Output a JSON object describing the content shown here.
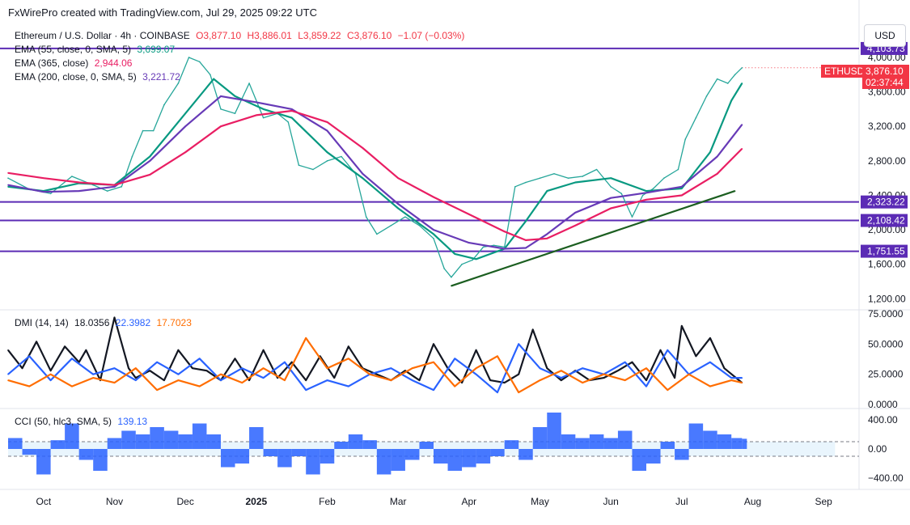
{
  "header": {
    "created_by": "FxWirePro created with TradingView.com, Jul 29, 2025 09:22 UTC"
  },
  "symbol_line": {
    "name": "Ethereum / U.S. Dollar · 4h · COINBASE",
    "open": "O3,877.10",
    "high": "H3,886.01",
    "low": "L3,859.22",
    "close": "C3,876.10",
    "change": "−1.07 (−0.03%)"
  },
  "indicators": {
    "ema55": {
      "label": "EMA (55, close, 0, SMA, 5)",
      "value": "3,699.07",
      "color": "#089981"
    },
    "ema365": {
      "label": "EMA (365, close)",
      "value": "2,944.06",
      "color": "#e91e63"
    },
    "ema200": {
      "label": "EMA (200, close, 0, SMA, 5)",
      "value": "3,221.72",
      "color": "#673ab7"
    },
    "dmi": {
      "label": "DMI (14, 14)",
      "adx": "18.0356",
      "plus": "22.3982",
      "minus": "17.7023",
      "adx_color": "#131722",
      "plus_color": "#2962ff",
      "minus_color": "#ff6d00"
    },
    "cci": {
      "label": "CCI (50, hlc3, SMA, 5)",
      "value": "139.13",
      "color": "#2962ff"
    }
  },
  "currency": "USD",
  "price_tag": {
    "symbol": "ETHUSD",
    "price": "3,876.10",
    "countdown": "02:37:44",
    "color": "#f23645"
  },
  "hlines": [
    {
      "label": "4,103.73",
      "value": 4103.73
    },
    {
      "label": "2,323.22",
      "value": 2323.22
    },
    {
      "label": "2,108.42",
      "value": 2108.42
    },
    {
      "label": "1,751.55",
      "value": 1751.55
    }
  ],
  "hline_color": "#5b2bb5",
  "chart_data": [
    {
      "type": "line",
      "panel": "price",
      "ylim": [
        1100,
        4150
      ],
      "y_ticks": [
        "4,000.00",
        "3,600.00",
        "3,200.00",
        "2,800.00",
        "2,400.00",
        "2,000.00",
        "1,600.00",
        "1,200.00"
      ],
      "y_tick_values": [
        4000,
        3600,
        3200,
        2800,
        2400,
        2000,
        1600,
        1200
      ],
      "x_ticks": [
        "Oct",
        "Nov",
        "Dec",
        "2025",
        "Feb",
        "Mar",
        "Apr",
        "May",
        "Jun",
        "Jul",
        "Aug",
        "Sep"
      ],
      "x_tick_pos": [
        0.5,
        1.5,
        2.5,
        3.5,
        4.5,
        5.5,
        6.5,
        7.5,
        8.5,
        9.5,
        10.5,
        11.5
      ],
      "x_tick_bold": [
        false,
        false,
        false,
        true,
        false,
        false,
        false,
        false,
        false,
        false,
        false,
        false
      ],
      "series": [
        {
          "name": "Price",
          "color": "#26a69a",
          "x": [
            0,
            0.3,
            0.6,
            0.9,
            1.2,
            1.4,
            1.6,
            1.75,
            1.9,
            2.05,
            2.2,
            2.4,
            2.55,
            2.7,
            2.85,
            3.0,
            3.2,
            3.4,
            3.6,
            3.8,
            3.95,
            4.1,
            4.3,
            4.5,
            4.7,
            4.9,
            5.05,
            5.2,
            5.4,
            5.6,
            5.8,
            6.0,
            6.15,
            6.25,
            6.4,
            6.55,
            6.7,
            6.85,
            7.0,
            7.15,
            7.3,
            7.5,
            7.7,
            7.9,
            8.1,
            8.3,
            8.5,
            8.65,
            8.8,
            8.95,
            9.1,
            9.25,
            9.45,
            9.55,
            9.7,
            9.85,
            10.0,
            10.15,
            10.25,
            10.35
          ],
          "values": [
            2600,
            2470,
            2420,
            2620,
            2520,
            2450,
            2500,
            2850,
            3150,
            3150,
            3450,
            3700,
            4000,
            3950,
            3800,
            3400,
            3350,
            3700,
            3300,
            3350,
            3250,
            2750,
            2700,
            2800,
            2850,
            2650,
            2150,
            1950,
            2050,
            2150,
            2050,
            1900,
            1550,
            1450,
            1600,
            1650,
            1800,
            1820,
            1800,
            2500,
            2550,
            2600,
            2650,
            2600,
            2620,
            2700,
            2500,
            2420,
            2150,
            2400,
            2480,
            2600,
            2700,
            3050,
            3300,
            3550,
            3750,
            3700,
            3800,
            3880
          ]
        },
        {
          "name": "EMA 55",
          "color": "#089981",
          "x": [
            0,
            0.5,
            1.0,
            1.5,
            2.0,
            2.5,
            2.9,
            3.2,
            3.6,
            4.0,
            4.5,
            5.0,
            5.5,
            6.0,
            6.3,
            6.6,
            7.0,
            7.3,
            7.6,
            8.0,
            8.5,
            9.0,
            9.5,
            9.9,
            10.2,
            10.35
          ],
          "values": [
            2500,
            2450,
            2540,
            2520,
            2850,
            3350,
            3750,
            3550,
            3400,
            3300,
            2900,
            2600,
            2250,
            1950,
            1720,
            1660,
            1780,
            2100,
            2450,
            2550,
            2600,
            2450,
            2480,
            2900,
            3500,
            3700
          ]
        },
        {
          "name": "EMA 200",
          "color": "#673ab7",
          "x": [
            0,
            0.5,
            1.0,
            1.5,
            2.0,
            2.5,
            3.0,
            3.5,
            4.0,
            4.5,
            5.0,
            5.5,
            6.0,
            6.5,
            7.0,
            7.3,
            7.6,
            8.0,
            8.5,
            9.0,
            9.5,
            10.0,
            10.35
          ],
          "values": [
            2520,
            2440,
            2450,
            2500,
            2800,
            3200,
            3550,
            3480,
            3400,
            3150,
            2650,
            2300,
            2000,
            1850,
            1780,
            1790,
            1950,
            2200,
            2370,
            2430,
            2500,
            2850,
            3220
          ]
        },
        {
          "name": "EMA 365",
          "color": "#e91e63",
          "x": [
            0,
            0.5,
            1.0,
            1.5,
            2.0,
            2.5,
            3.0,
            3.5,
            4.0,
            4.5,
            5.0,
            5.5,
            6.0,
            6.5,
            7.0,
            7.3,
            7.6,
            8.0,
            8.5,
            9.0,
            9.5,
            10.0,
            10.35
          ],
          "values": [
            2660,
            2600,
            2550,
            2520,
            2640,
            2900,
            3200,
            3330,
            3380,
            3250,
            2950,
            2600,
            2380,
            2180,
            1980,
            1880,
            1900,
            2050,
            2250,
            2350,
            2400,
            2650,
            2940
          ]
        },
        {
          "name": "Trendline",
          "color": "#1b5e20",
          "x": [
            6.25,
            10.25
          ],
          "values": [
            1350,
            2450
          ]
        }
      ]
    },
    {
      "type": "line",
      "panel": "dmi",
      "ylim": [
        0,
        75
      ],
      "y_ticks": [
        "75.0000",
        "50.0000",
        "25.0000",
        "0.0000"
      ],
      "y_tick_values": [
        75,
        50,
        25,
        0
      ],
      "series": [
        {
          "name": "ADX",
          "color": "#131722",
          "x": [
            0,
            0.2,
            0.4,
            0.6,
            0.8,
            1.0,
            1.1,
            1.3,
            1.5,
            1.7,
            1.8,
            2.0,
            2.2,
            2.4,
            2.6,
            2.8,
            3.0,
            3.2,
            3.4,
            3.6,
            3.8,
            4.0,
            4.2,
            4.4,
            4.6,
            4.8,
            5.0,
            5.2,
            5.4,
            5.6,
            5.8,
            6.0,
            6.2,
            6.4,
            6.6,
            6.8,
            7.0,
            7.2,
            7.4,
            7.6,
            7.8,
            8.0,
            8.2,
            8.4,
            8.6,
            8.8,
            9.0,
            9.2,
            9.4,
            9.5,
            9.7,
            9.9,
            10.1,
            10.35
          ],
          "values": [
            45,
            30,
            52,
            28,
            48,
            35,
            45,
            20,
            72,
            30,
            22,
            28,
            20,
            45,
            30,
            28,
            20,
            38,
            20,
            45,
            22,
            35,
            20,
            40,
            22,
            48,
            30,
            25,
            20,
            28,
            20,
            50,
            30,
            18,
            45,
            20,
            18,
            25,
            62,
            30,
            20,
            28,
            20,
            22,
            28,
            35,
            20,
            45,
            22,
            65,
            40,
            55,
            30,
            18
          ]
        },
        {
          "name": "+DI",
          "color": "#2962ff",
          "x": [
            0,
            0.3,
            0.6,
            0.9,
            1.2,
            1.5,
            1.8,
            2.1,
            2.4,
            2.7,
            3.0,
            3.3,
            3.6,
            3.9,
            4.2,
            4.5,
            4.8,
            5.1,
            5.4,
            5.7,
            6.0,
            6.3,
            6.6,
            6.9,
            7.2,
            7.5,
            7.8,
            8.1,
            8.4,
            8.7,
            9.0,
            9.3,
            9.6,
            9.9,
            10.2,
            10.35
          ],
          "values": [
            25,
            40,
            20,
            38,
            25,
            30,
            20,
            35,
            25,
            38,
            20,
            30,
            22,
            35,
            12,
            20,
            15,
            25,
            30,
            20,
            12,
            38,
            25,
            10,
            50,
            30,
            22,
            30,
            25,
            35,
            15,
            45,
            25,
            35,
            22,
            22
          ]
        },
        {
          "name": "−DI",
          "color": "#ff6d00",
          "x": [
            0,
            0.3,
            0.6,
            0.9,
            1.2,
            1.5,
            1.8,
            2.1,
            2.4,
            2.7,
            3.0,
            3.3,
            3.6,
            3.9,
            4.2,
            4.5,
            4.8,
            5.1,
            5.4,
            5.7,
            6.0,
            6.3,
            6.6,
            6.9,
            7.2,
            7.5,
            7.8,
            8.1,
            8.4,
            8.7,
            9.0,
            9.3,
            9.6,
            9.9,
            10.2,
            10.35
          ],
          "values": [
            20,
            15,
            25,
            15,
            22,
            18,
            30,
            12,
            20,
            15,
            25,
            18,
            30,
            20,
            55,
            30,
            38,
            25,
            20,
            30,
            35,
            15,
            30,
            40,
            10,
            20,
            28,
            18,
            25,
            20,
            30,
            12,
            25,
            15,
            20,
            18
          ]
        }
      ]
    },
    {
      "type": "bar",
      "panel": "cci",
      "ylim": [
        -500,
        500
      ],
      "y_ticks": [
        "400.00",
        "0.00",
        "−400.00"
      ],
      "y_tick_values": [
        400,
        0,
        -400
      ],
      "band": [
        100,
        -100
      ],
      "series": [
        {
          "name": "CCI",
          "color": "#2962ff",
          "x": [
            0,
            0.2,
            0.4,
            0.6,
            0.8,
            1.0,
            1.2,
            1.4,
            1.6,
            1.8,
            2.0,
            2.2,
            2.4,
            2.6,
            2.8,
            3.0,
            3.2,
            3.4,
            3.6,
            3.8,
            4.0,
            4.2,
            4.4,
            4.6,
            4.8,
            5.0,
            5.2,
            5.4,
            5.6,
            5.8,
            6.0,
            6.2,
            6.4,
            6.6,
            6.8,
            7.0,
            7.2,
            7.4,
            7.6,
            7.8,
            8.0,
            8.2,
            8.4,
            8.6,
            8.8,
            9.0,
            9.2,
            9.4,
            9.6,
            9.8,
            10.0,
            10.2,
            10.35
          ],
          "values": [
            150,
            -80,
            -350,
            120,
            350,
            -150,
            -300,
            150,
            250,
            200,
            300,
            250,
            200,
            350,
            200,
            -250,
            -200,
            300,
            -100,
            -250,
            -100,
            -350,
            -200,
            100,
            200,
            120,
            -350,
            -300,
            -150,
            100,
            -200,
            -300,
            -250,
            -200,
            -100,
            120,
            -150,
            300,
            500,
            200,
            150,
            200,
            150,
            250,
            -300,
            -200,
            100,
            -150,
            350,
            250,
            200,
            150,
            140
          ]
        }
      ]
    }
  ]
}
